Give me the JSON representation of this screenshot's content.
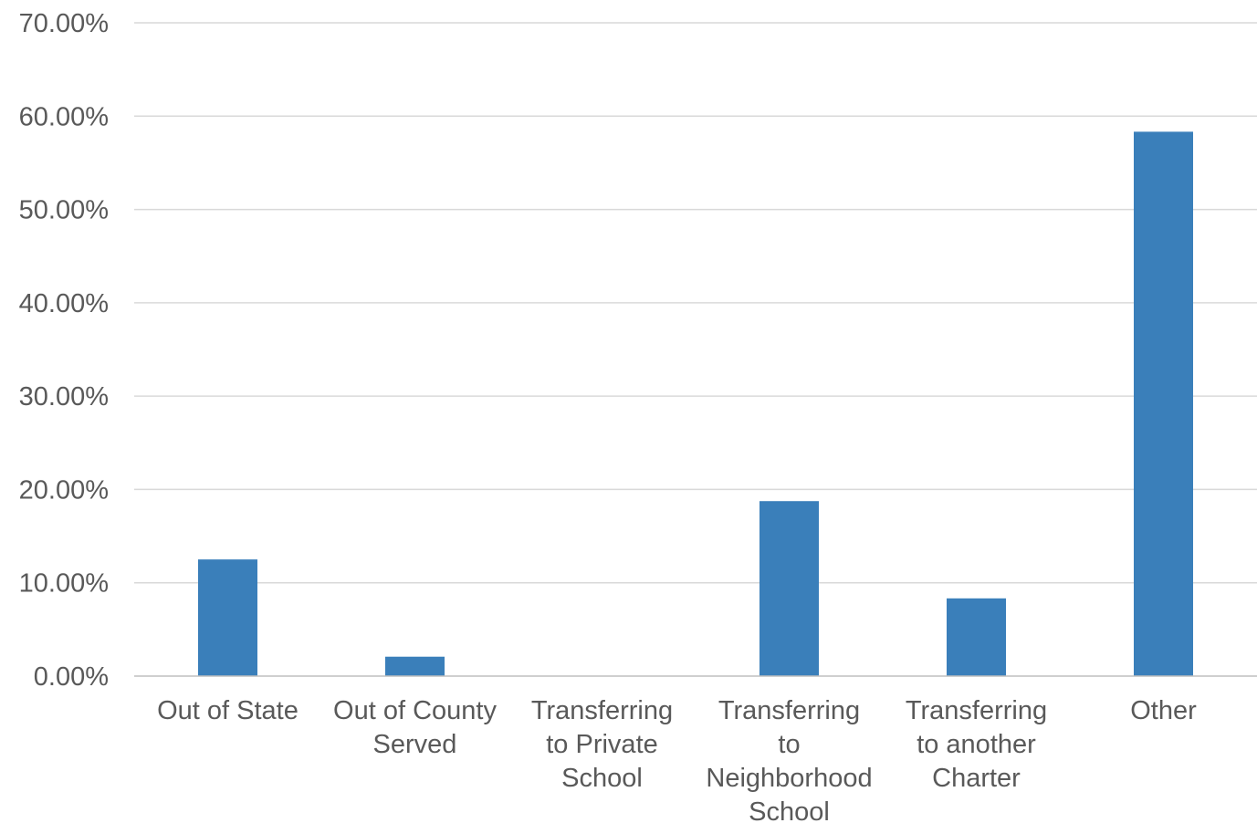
{
  "chart_data": {
    "type": "bar",
    "categories": [
      [
        "Out of State"
      ],
      [
        "Out of County",
        "Served"
      ],
      [
        "Transferring",
        "to Private",
        "School"
      ],
      [
        "Transferring",
        "to",
        "Neighborhood",
        "School"
      ],
      [
        "Transferring",
        "to another",
        "Charter"
      ],
      [
        "Other"
      ]
    ],
    "values": [
      12.5,
      2.08,
      0.0,
      18.75,
      8.33,
      58.33
    ],
    "ylim": [
      0,
      70
    ],
    "yticks": [
      "0.00%",
      "10.00%",
      "20.00%",
      "30.00%",
      "40.00%",
      "50.00%",
      "60.00%",
      "70.00%"
    ],
    "bar_color": "#3a7fba",
    "grid": true,
    "legend": "none"
  }
}
